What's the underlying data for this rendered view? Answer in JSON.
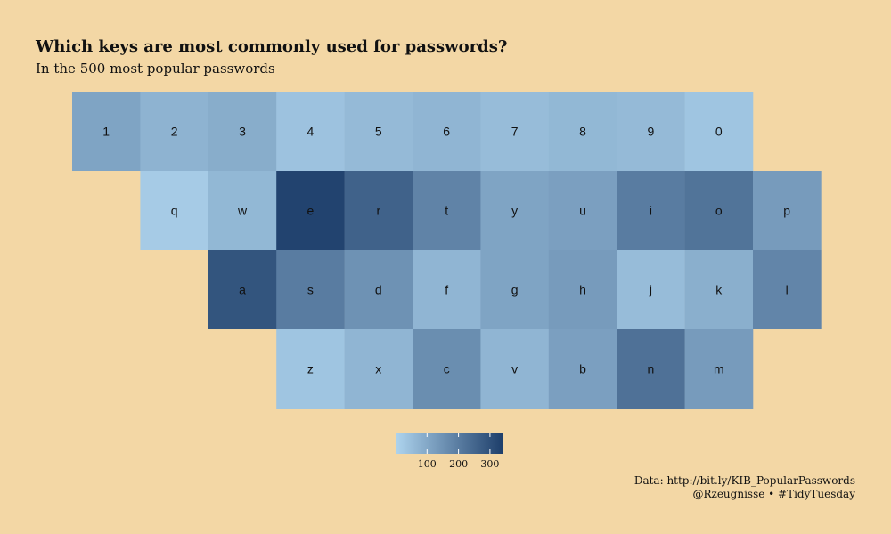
{
  "chart_data": {
    "type": "heatmap",
    "title": "Which keys are most commonly used for passwords?",
    "subtitle": "In the 500 most popular passwords",
    "rows": [
      {
        "keys": [
          "1",
          "2",
          "3",
          "4",
          "5",
          "6",
          "7",
          "8",
          "9",
          "0"
        ],
        "values": [
          110,
          75,
          90,
          40,
          60,
          70,
          55,
          65,
          60,
          35
        ]
      },
      {
        "keys": [
          "q",
          "w",
          "e",
          "r",
          "t",
          "y",
          "u",
          "i",
          "o",
          "p"
        ],
        "values": [
          20,
          65,
          330,
          260,
          185,
          110,
          120,
          200,
          220,
          130
        ]
      },
      {
        "keys": [
          "a",
          "s",
          "d",
          "f",
          "g",
          "h",
          "j",
          "k",
          "l"
        ],
        "values": [
          290,
          200,
          150,
          70,
          110,
          130,
          55,
          85,
          180
        ]
      },
      {
        "keys": [
          "z",
          "x",
          "c",
          "v",
          "b",
          "n",
          "m"
        ],
        "values": [
          35,
          70,
          160,
          70,
          120,
          225,
          130
        ]
      }
    ],
    "colorbar": {
      "range": [
        0,
        340
      ],
      "low_color": "#aed4ee",
      "high_color": "#1e3f6b",
      "ticks": [
        100,
        200,
        300
      ],
      "tick_labels": [
        "100",
        "200",
        "300"
      ],
      "placement": "bottom-center"
    }
  },
  "caption": {
    "line1": "Data: http://bit.ly/KIB_PopularPasswords",
    "line2": "@Rzeugnisse • #TidyTuesday"
  }
}
